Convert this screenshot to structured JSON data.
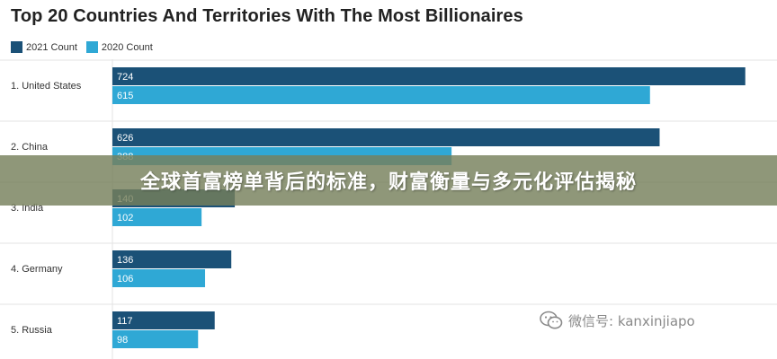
{
  "chart_data": {
    "type": "bar",
    "title": "Top 20 Countries And Territories With The Most Billionaires",
    "categories": [
      "1. United States",
      "2. China",
      "3. India",
      "4. Germany",
      "5. Russia"
    ],
    "series": [
      {
        "name": "2021 Count",
        "color": "#1b5177",
        "values": [
          724,
          626,
          140,
          136,
          117
        ]
      },
      {
        "name": "2020 Count",
        "color": "#2fa8d5",
        "values": [
          615,
          388,
          102,
          106,
          98
        ]
      }
    ],
    "xlim": [
      0,
      750
    ],
    "grid": true,
    "legend": "top-left"
  },
  "overlay": {
    "banner_text": "全球首富榜单背后的标准，财富衡量与多元化评估揭秘",
    "banner_color": "#76805c"
  },
  "watermark": {
    "text": "微信号: kanxinjiapo",
    "icon": "wechat-icon"
  }
}
